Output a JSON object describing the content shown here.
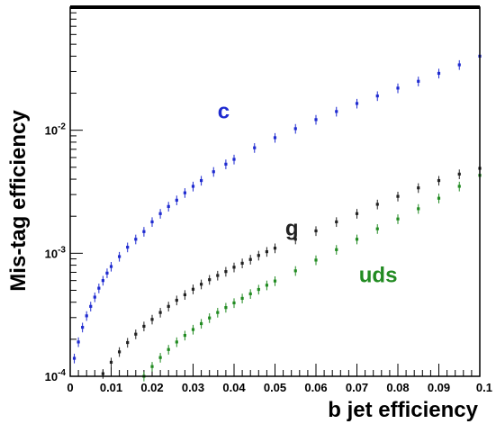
{
  "chart_data": {
    "type": "scatter",
    "xlabel": "b jet efficiency",
    "ylabel": "Mis-tag efficiency",
    "xlim": [
      0,
      0.1
    ],
    "ylim": [
      0.0001,
      0.1
    ],
    "yscale": "log",
    "grid": false,
    "x_ticks": [
      {
        "value": 0,
        "label": "0"
      },
      {
        "value": 0.01,
        "label": "0.01"
      },
      {
        "value": 0.02,
        "label": "0.02"
      },
      {
        "value": 0.03,
        "label": "0.03"
      },
      {
        "value": 0.04,
        "label": "0.04"
      },
      {
        "value": 0.05,
        "label": "0.05"
      },
      {
        "value": 0.06,
        "label": "0.06"
      },
      {
        "value": 0.07,
        "label": "0.07"
      },
      {
        "value": 0.08,
        "label": "0.08"
      },
      {
        "value": 0.09,
        "label": "0.09"
      },
      {
        "value": 0.1,
        "label": "0.1"
      }
    ],
    "y_ticks": [
      {
        "value": 0.0001,
        "base": "10",
        "exp": "-4"
      },
      {
        "value": 0.001,
        "base": "10",
        "exp": "-3"
      },
      {
        "value": 0.01,
        "base": "10",
        "exp": "-2"
      }
    ],
    "series": [
      {
        "name": "c",
        "color": "#1f2bd0",
        "label_at": [
          0.036,
          0.0125
        ],
        "x": [
          0.001,
          0.002,
          0.003,
          0.004,
          0.005,
          0.006,
          0.007,
          0.008,
          0.009,
          0.01,
          0.012,
          0.014,
          0.016,
          0.018,
          0.02,
          0.022,
          0.024,
          0.026,
          0.028,
          0.03,
          0.032,
          0.035,
          0.038,
          0.04,
          0.045,
          0.05,
          0.055,
          0.06,
          0.065,
          0.07,
          0.075,
          0.08,
          0.085,
          0.09,
          0.095,
          0.1
        ],
        "y": [
          0.00014,
          0.00019,
          0.00025,
          0.00031,
          0.00037,
          0.00044,
          0.00052,
          0.0006,
          0.00069,
          0.00078,
          0.00094,
          0.00112,
          0.0013,
          0.0015,
          0.0018,
          0.0021,
          0.0024,
          0.0027,
          0.0031,
          0.0035,
          0.0039,
          0.0046,
          0.0053,
          0.0058,
          0.0072,
          0.0087,
          0.0103,
          0.0122,
          0.0142,
          0.0165,
          0.019,
          0.022,
          0.025,
          0.029,
          0.034,
          0.04
        ]
      },
      {
        "name": "g",
        "color": "#222222",
        "label_at": [
          0.0525,
          0.0014
        ],
        "x": [
          0.008,
          0.01,
          0.012,
          0.014,
          0.016,
          0.018,
          0.02,
          0.022,
          0.024,
          0.026,
          0.028,
          0.03,
          0.032,
          0.034,
          0.036,
          0.038,
          0.04,
          0.042,
          0.044,
          0.046,
          0.048,
          0.05,
          0.055,
          0.06,
          0.065,
          0.07,
          0.075,
          0.08,
          0.085,
          0.09,
          0.095,
          0.1
        ],
        "y": [
          0.000105,
          0.00013,
          0.000158,
          0.000188,
          0.00022,
          0.000255,
          0.00029,
          0.00033,
          0.00037,
          0.000415,
          0.00046,
          0.00051,
          0.00056,
          0.00061,
          0.00066,
          0.00071,
          0.00077,
          0.00083,
          0.00089,
          0.00096,
          0.00103,
          0.0011,
          0.0013,
          0.00152,
          0.0018,
          0.0021,
          0.0025,
          0.0029,
          0.0034,
          0.0039,
          0.0044,
          0.0049
        ]
      },
      {
        "name": "uds",
        "color": "#228b22",
        "label_at": [
          0.0705,
          0.00058
        ],
        "x": [
          0.018,
          0.02,
          0.022,
          0.024,
          0.026,
          0.028,
          0.03,
          0.032,
          0.034,
          0.036,
          0.038,
          0.04,
          0.042,
          0.044,
          0.046,
          0.048,
          0.05,
          0.055,
          0.06,
          0.065,
          0.07,
          0.075,
          0.08,
          0.085,
          0.09,
          0.095,
          0.1
        ],
        "y": [
          0.0001,
          0.00012,
          0.000142,
          0.000165,
          0.00019,
          0.000215,
          0.00024,
          0.000268,
          0.000298,
          0.00033,
          0.000362,
          0.000395,
          0.00043,
          0.000468,
          0.000508,
          0.00055,
          0.000595,
          0.00072,
          0.00088,
          0.00107,
          0.0013,
          0.00158,
          0.0019,
          0.0023,
          0.0028,
          0.0035,
          0.0043
        ]
      }
    ]
  }
}
